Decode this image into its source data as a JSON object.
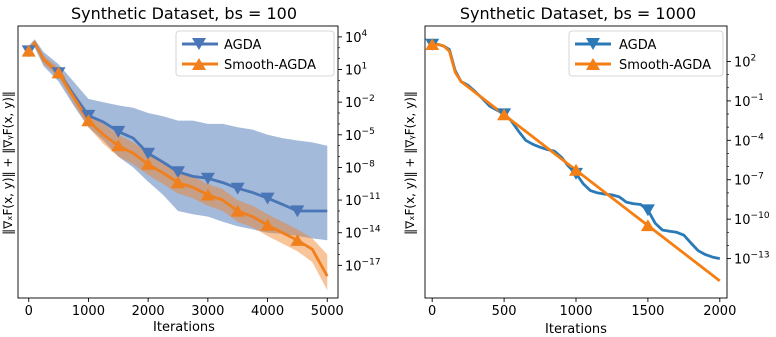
{
  "chart_data": [
    {
      "type": "line",
      "title": "Synthetic Dataset, bs = 100",
      "xlabel": "Iterations",
      "ylabel": "‖∇ₓF(x, y)‖ + ‖∇ᵧF(x, y)‖",
      "y_scale": "log",
      "y_axis_side": "right",
      "xlim": [
        -180,
        5180
      ],
      "ylim": [
        1e-20,
        100000.0
      ],
      "x_ticks": [
        0,
        1000,
        2000,
        3000,
        4000,
        5000
      ],
      "x_tick_labels": [
        "0",
        "1000",
        "2000",
        "3000",
        "4000",
        "5000"
      ],
      "y_ticks": [
        10000.0,
        10,
        0.01,
        1e-05,
        1e-08,
        1e-11,
        1e-14,
        1e-17
      ],
      "y_tick_labels": [
        [
          "10",
          "4"
        ],
        [
          "10",
          "1"
        ],
        [
          "10",
          "−2"
        ],
        [
          "10",
          "−5"
        ],
        [
          "10",
          "−8"
        ],
        [
          "10",
          "−11"
        ],
        [
          "10",
          "−14"
        ],
        [
          "10",
          "−17"
        ]
      ],
      "grid": false,
      "legend_position": "top-right",
      "series": [
        {
          "name": "AGDA",
          "color": "#4a76b8",
          "marker": "triangle-down",
          "x": [
            0,
            100,
            250,
            500,
            750,
            1000,
            1250,
            1500,
            1750,
            2000,
            2250,
            2500,
            2750,
            3000,
            3250,
            3500,
            3750,
            4000,
            4250,
            4500,
            4750,
            5000
          ],
          "y": [
            500,
            3000,
            80,
            5,
            0.05,
            0.0006,
            0.00015,
            2e-05,
            5e-06,
            2e-07,
            3e-08,
            4e-09,
            1.5e-09,
            1e-09,
            4e-10,
            1.2e-10,
            5e-11,
            1.5e-11,
            4e-12,
            1e-12,
            1e-12,
            1e-12
          ],
          "y_upper": [
            1500,
            6000,
            400,
            30,
            0.8,
            0.02,
            0.01,
            0.005,
            0.003,
            0.001,
            0.0005,
            0.0002,
            0.0002,
            0.0001,
            0.0001,
            5e-05,
            3e-05,
            1e-05,
            5e-06,
            3e-06,
            2e-06,
            1e-06
          ],
          "y_lower": [
            200,
            1000,
            20,
            0.8,
            0.005,
            5e-05,
            3e-06,
            1e-07,
            1e-08,
            5e-10,
            3e-11,
            1e-12,
            5e-13,
            3e-13,
            1e-13,
            4e-14,
            2e-14,
            1e-14,
            8e-15,
            5e-15,
            3e-15,
            2e-15
          ],
          "marker_x": [
            0,
            500,
            1000,
            1500,
            2000,
            2500,
            3000,
            3500,
            4000,
            4500
          ]
        },
        {
          "name": "Smooth-AGDA",
          "color": "#f07f1e",
          "marker": "triangle-up",
          "x": [
            0,
            100,
            250,
            500,
            750,
            1000,
            1250,
            1500,
            1750,
            2000,
            2250,
            2500,
            2750,
            3000,
            3250,
            3500,
            3750,
            4000,
            4250,
            4500,
            4750,
            5000
          ],
          "y": [
            500,
            3000,
            80,
            5,
            0.03,
            0.0002,
            1e-05,
            1e-06,
            2e-07,
            2e-08,
            3e-09,
            4e-10,
            1.5e-10,
            3e-11,
            1e-11,
            1e-12,
            3e-13,
            5e-14,
            1e-14,
            2e-15,
            3e-16,
            1e-18
          ],
          "y_upper": [
            1000,
            5000,
            200,
            15,
            0.1,
            0.001,
            0.0001,
            1e-05,
            2e-06,
            2e-07,
            3e-08,
            4e-09,
            1.5e-09,
            3e-10,
            1e-10,
            1e-11,
            3e-12,
            5e-13,
            1e-13,
            2e-14,
            3e-15,
            1e-16
          ],
          "y_lower": [
            250,
            1500,
            30,
            2,
            0.008,
            5e-05,
            1.5e-06,
            1e-07,
            2e-08,
            2e-09,
            3e-10,
            4e-11,
            1.5e-11,
            3e-12,
            1e-12,
            1e-13,
            3e-14,
            5e-15,
            1e-15,
            2e-16,
            2e-17,
            5e-20
          ],
          "marker_x": [
            0,
            500,
            1000,
            1500,
            2000,
            2500,
            3000,
            3500,
            4000,
            4500
          ]
        }
      ]
    },
    {
      "type": "line",
      "title": "Synthetic Dataset, bs = 1000",
      "xlabel": "Iterations",
      "ylabel": "‖∇ₓF(x, y)‖ + ‖∇ᵧF(x, y)‖",
      "y_scale": "log",
      "y_axis_side": "right",
      "xlim": [
        -50,
        2050
      ],
      "ylim": [
        1e-16,
        50000.0
      ],
      "x_ticks": [
        0,
        500,
        1000,
        1500,
        2000
      ],
      "x_tick_labels": [
        "0",
        "500",
        "1000",
        "1500",
        "2000"
      ],
      "y_ticks": [
        100,
        0.1,
        0.0001,
        1e-07,
        1e-10,
        1e-13
      ],
      "y_tick_labels": [
        [
          "10",
          "2"
        ],
        [
          "10",
          "−1"
        ],
        [
          "10",
          "−4"
        ],
        [
          "10",
          "−7"
        ],
        [
          "10",
          "−10"
        ],
        [
          "10",
          "−13"
        ]
      ],
      "grid": false,
      "legend_position": "top-right",
      "series": [
        {
          "name": "AGDA",
          "color": "#2a7ab7",
          "marker": "triangle-down",
          "x": [
            0,
            40,
            80,
            120,
            160,
            200,
            250,
            300,
            350,
            400,
            450,
            500,
            550,
            600,
            650,
            700,
            750,
            800,
            850,
            900,
            950,
            1000,
            1050,
            1100,
            1150,
            1200,
            1250,
            1300,
            1350,
            1400,
            1450,
            1500,
            1550,
            1600,
            1650,
            1700,
            1750,
            1800,
            1850,
            1900,
            1950,
            2000
          ],
          "y": [
            2000,
            2000,
            1500,
            800,
            20,
            3,
            1.5,
            0.5,
            0.15,
            0.04,
            0.02,
            0.01,
            0.003,
            0.0005,
            0.0001,
            5e-05,
            3e-05,
            2e-05,
            1.5e-05,
            5e-06,
            1e-06,
            3e-07,
            5e-08,
            1.5e-08,
            1e-08,
            8e-09,
            7e-09,
            5e-09,
            2e-09,
            1.5e-09,
            1.3e-09,
            5e-10,
            5e-11,
            1.5e-11,
            1.2e-11,
            1e-11,
            6e-12,
            1.5e-12,
            4e-13,
            2e-13,
            1.3e-13,
            1e-13
          ],
          "marker_x": [
            0,
            500,
            1000,
            1500
          ]
        },
        {
          "name": "Smooth-AGDA",
          "color": "#f57f12",
          "marker": "triangle-up",
          "x": [
            0,
            40,
            80,
            120,
            160,
            200,
            2000
          ],
          "y": [
            2000,
            2000,
            1500,
            600,
            15,
            3,
            2e-15
          ],
          "marker_x": [
            0,
            500,
            1000,
            1500
          ]
        }
      ]
    }
  ]
}
